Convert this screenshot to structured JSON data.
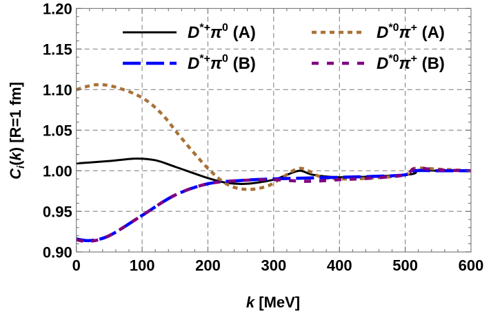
{
  "chart_data": {
    "type": "line",
    "xlabel_parts": [
      "k",
      " [MeV]"
    ],
    "ylabel_parts": [
      "C",
      "i",
      "(",
      "k",
      ") [R=1 fm]"
    ],
    "xlim": [
      0,
      600
    ],
    "ylim": [
      0.9,
      1.2
    ],
    "xticks": [
      "0",
      "100",
      "200",
      "300",
      "400",
      "500",
      "600"
    ],
    "yticks": [
      "0.90",
      "0.95",
      "1.00",
      "1.05",
      "1.10",
      "1.15",
      "1.20"
    ],
    "grid": true,
    "legend_placement": "top",
    "series": [
      {
        "name": "D*+π0 (A)",
        "label_parts": [
          "D",
          "*+",
          "π",
          "0",
          " (A)"
        ],
        "color": "#000000",
        "style": "solid",
        "x": [
          0,
          50,
          90,
          120,
          150,
          200,
          230,
          260,
          300,
          320,
          340,
          360,
          400,
          450,
          500,
          515,
          520,
          550,
          600
        ],
        "y": [
          1.009,
          1.012,
          1.015,
          1.013,
          1.005,
          0.991,
          0.985,
          0.984,
          0.989,
          0.995,
          1.0,
          0.995,
          0.992,
          0.993,
          0.995,
          0.997,
          1.001,
          1.0,
          1.0
        ]
      },
      {
        "name": "D*0π+ (A)",
        "label_parts": [
          "D",
          "*0",
          "π",
          "+",
          " (A)"
        ],
        "color": "#A87238",
        "style": "dotted",
        "x": [
          0,
          30,
          60,
          100,
          130,
          160,
          200,
          230,
          260,
          290,
          310,
          340,
          370,
          400,
          450,
          500,
          515,
          550,
          600
        ],
        "y": [
          1.1,
          1.106,
          1.103,
          1.09,
          1.07,
          1.04,
          1.003,
          0.983,
          0.977,
          0.981,
          0.99,
          1.003,
          0.993,
          0.99,
          0.991,
          0.995,
          1.003,
          1.002,
          1.0
        ]
      },
      {
        "name": "D*+π0 (B)",
        "label_parts": [
          "D",
          "*+",
          "π",
          "0",
          " (B)"
        ],
        "color": "#0000FF",
        "style": "dashed",
        "x": [
          0,
          20,
          50,
          100,
          150,
          200,
          250,
          300,
          350,
          400,
          450,
          500,
          515,
          550,
          600
        ],
        "y": [
          0.916,
          0.914,
          0.92,
          0.945,
          0.97,
          0.984,
          0.988,
          0.99,
          0.991,
          0.992,
          0.993,
          0.995,
          1.0,
          1.0,
          1.0
        ]
      },
      {
        "name": "D*0π+ (B)",
        "label_parts": [
          "D",
          "*0",
          "π",
          "+",
          " (B)"
        ],
        "color": "#800080",
        "style": "dashdot",
        "x": [
          0,
          20,
          50,
          100,
          150,
          200,
          250,
          300,
          350,
          400,
          450,
          500,
          515,
          550,
          600
        ],
        "y": [
          0.915,
          0.913,
          0.92,
          0.945,
          0.97,
          0.984,
          0.988,
          0.989,
          0.987,
          0.989,
          0.991,
          0.995,
          1.003,
          1.001,
          1.0
        ]
      }
    ]
  }
}
